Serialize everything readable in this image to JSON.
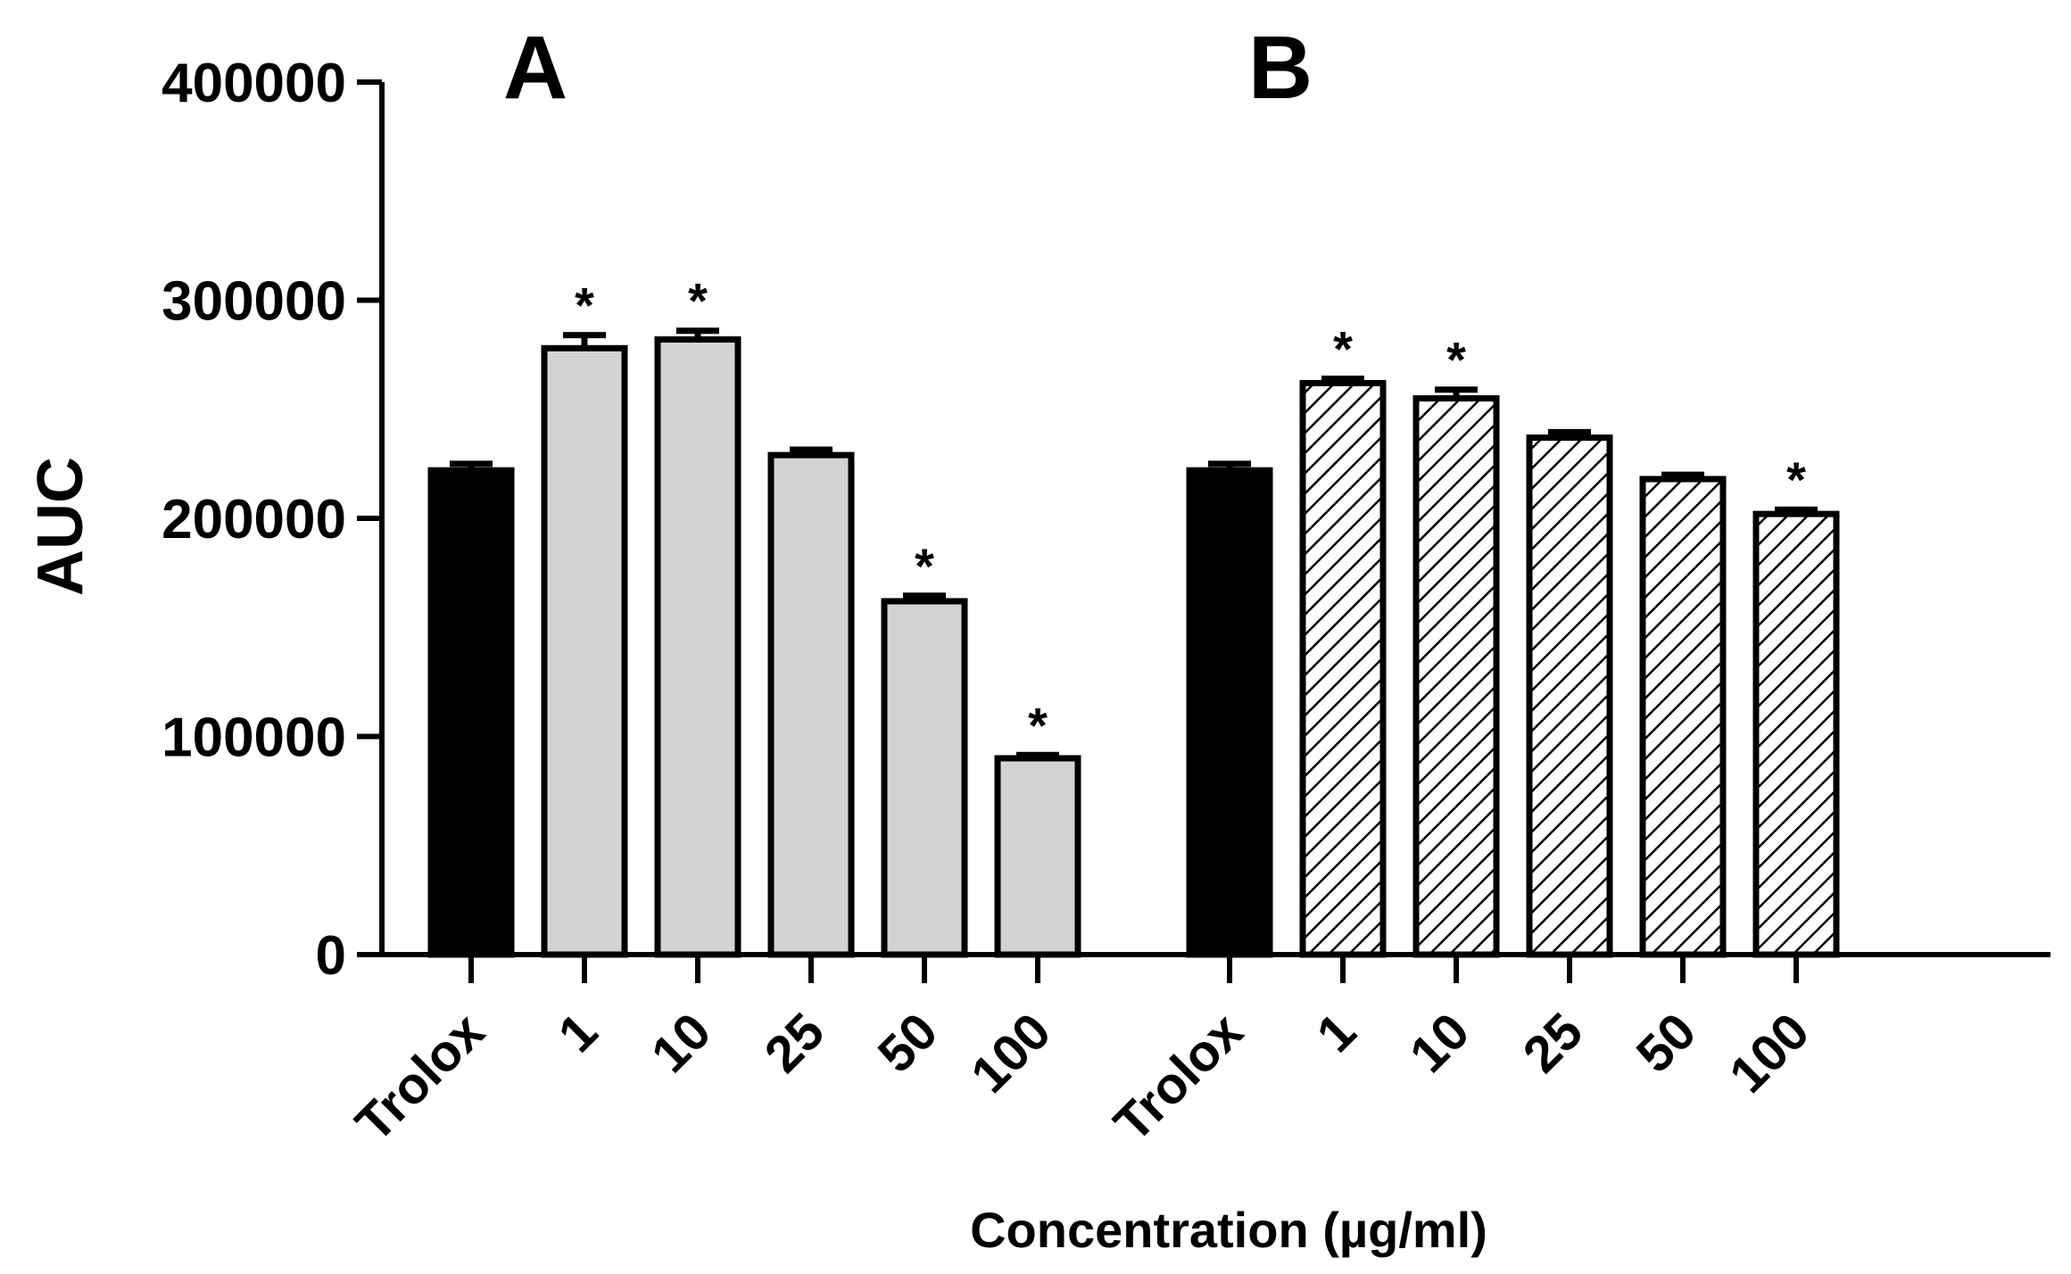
{
  "chart_data": {
    "type": "bar",
    "ylabel": "AUC",
    "xlabel": "Concentration (µg/ml)",
    "ylim": [
      0,
      400000
    ],
    "yticks": [
      0,
      100000,
      200000,
      300000,
      400000
    ],
    "ytick_labels": [
      "0",
      "100000",
      "200000",
      "300000",
      "400000"
    ],
    "grid": false,
    "significance_marker": "*",
    "colors": {
      "trolox": "#000000",
      "groupA": "#d3d3d3",
      "groupB_fill": "#ffffff",
      "groupB_hatch": "#000000",
      "stroke": "#000000"
    },
    "groups": [
      {
        "panel": "A",
        "pattern": "solid-grey",
        "categories": [
          "Trolox",
          "1",
          "10",
          "25",
          "50",
          "100"
        ],
        "values": [
          222000,
          278000,
          282000,
          229000,
          162000,
          90000
        ],
        "errors": [
          3000,
          6000,
          4000,
          2500,
          2500,
          1500
        ],
        "significant": [
          false,
          true,
          true,
          false,
          true,
          true
        ]
      },
      {
        "panel": "B",
        "pattern": "hatched",
        "categories": [
          "Trolox",
          "1",
          "10",
          "25",
          "50",
          "100"
        ],
        "values": [
          222000,
          262000,
          255000,
          237000,
          218000,
          202000
        ],
        "errors": [
          3000,
          2000,
          4000,
          2500,
          2000,
          2000
        ],
        "significant": [
          false,
          true,
          true,
          false,
          false,
          true
        ]
      }
    ]
  }
}
